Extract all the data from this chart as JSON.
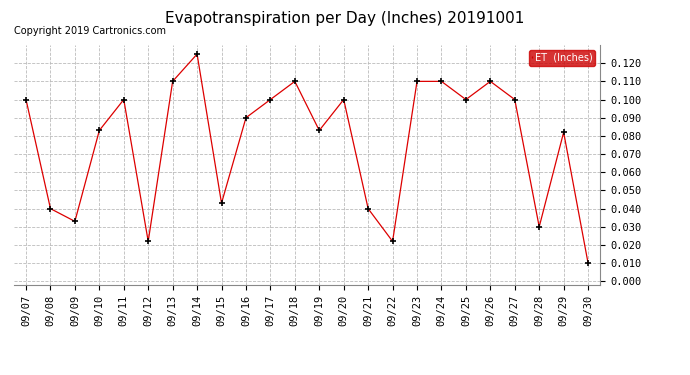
{
  "title": "Evapotranspiration per Day (Inches) 20191001",
  "copyright": "Copyright 2019 Cartronics.com",
  "legend_label": "ET  (Inches)",
  "dates": [
    "09/07",
    "09/08",
    "09/09",
    "09/10",
    "09/11",
    "09/12",
    "09/13",
    "09/14",
    "09/15",
    "09/16",
    "09/17",
    "09/18",
    "09/19",
    "09/20",
    "09/21",
    "09/22",
    "09/23",
    "09/24",
    "09/25",
    "09/26",
    "09/27",
    "09/28",
    "09/29",
    "09/30"
  ],
  "values": [
    0.1,
    0.04,
    0.033,
    0.083,
    0.1,
    0.022,
    0.11,
    0.125,
    0.043,
    0.09,
    0.1,
    0.11,
    0.083,
    0.1,
    0.04,
    0.022,
    0.11,
    0.11,
    0.1,
    0.11,
    0.1,
    0.03,
    0.082,
    0.01
  ],
  "line_color": "#dd0000",
  "marker": "+",
  "marker_color": "#000000",
  "ylim": [
    -0.002,
    0.13
  ],
  "yticks": [
    0.0,
    0.01,
    0.02,
    0.03,
    0.04,
    0.05,
    0.06,
    0.07,
    0.08,
    0.09,
    0.1,
    0.11,
    0.12
  ],
  "background_color": "#ffffff",
  "grid_color": "#bbbbbb",
  "title_fontsize": 11,
  "tick_fontsize": 7.5,
  "copyright_fontsize": 7,
  "legend_bg": "#cc0000",
  "legend_fg": "#ffffff"
}
